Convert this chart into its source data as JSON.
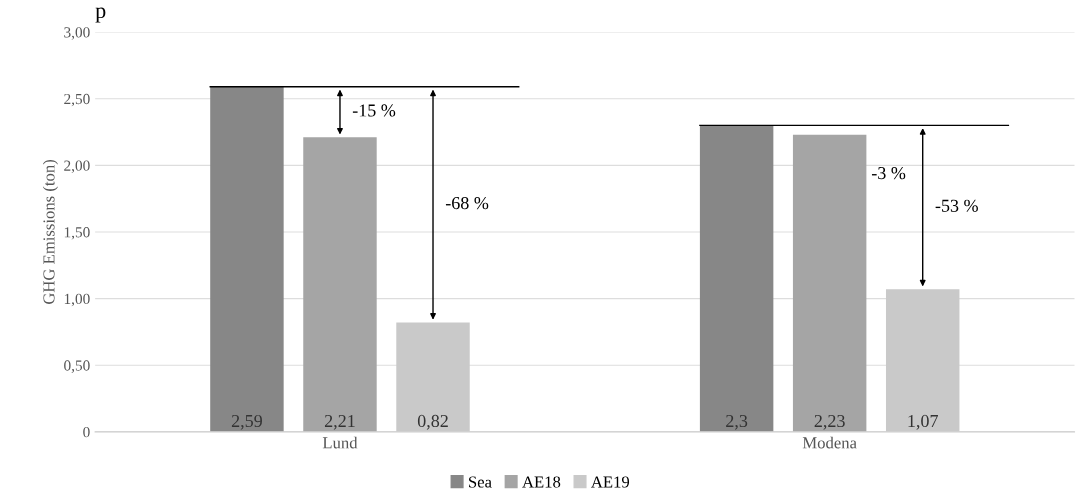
{
  "chart_data": {
    "type": "bar",
    "title": "p",
    "ylabel": "GHG Emissions (ton)",
    "categories": [
      "Lund",
      "Modena"
    ],
    "series": [
      {
        "name": "Sea",
        "color": "#878787",
        "values": [
          2.59,
          2.3
        ],
        "value_labels": [
          "2,59",
          "2,3"
        ]
      },
      {
        "name": "AE18",
        "color": "#a5a5a5",
        "values": [
          2.21,
          2.23
        ],
        "value_labels": [
          "2,21",
          "2,23"
        ]
      },
      {
        "name": "AE19",
        "color": "#c9c9c9",
        "values": [
          0.82,
          1.07
        ],
        "value_labels": [
          "0,82",
          "1,07"
        ]
      }
    ],
    "ylim": [
      0,
      3
    ],
    "yticks": [
      {
        "value": 0,
        "label": "0"
      },
      {
        "value": 0.5,
        "label": "0,50"
      },
      {
        "value": 1,
        "label": "1,00"
      },
      {
        "value": 1.5,
        "label": "1,50"
      },
      {
        "value": 2,
        "label": "2,00"
      },
      {
        "value": 2.5,
        "label": "2,50"
      },
      {
        "value": 3,
        "label": "3,00"
      }
    ],
    "grid": "y",
    "legend": "bottom",
    "annotations": [
      "-15 %",
      "-68 %",
      "-3 %",
      "-53 %"
    ]
  }
}
